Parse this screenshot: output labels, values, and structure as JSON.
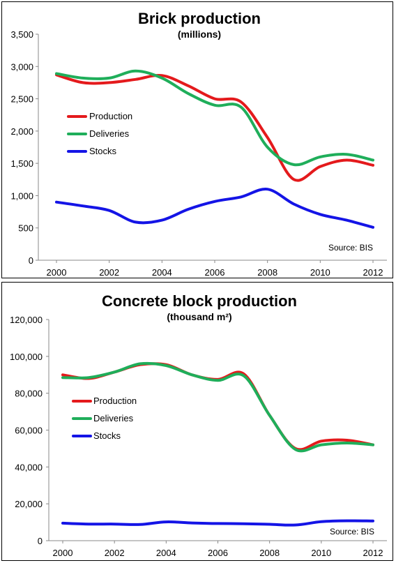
{
  "chart_data": [
    {
      "type": "line",
      "title": "Brick production",
      "subtitle": "(millions)",
      "x": [
        2000,
        2001,
        2002,
        2003,
        2004,
        2005,
        2006,
        2007,
        2008,
        2009,
        2010,
        2011,
        2012
      ],
      "x_ticks": [
        "2000",
        "2002",
        "2004",
        "2006",
        "2008",
        "2010",
        "2012"
      ],
      "y_ticks": [
        "0",
        "500",
        "1,000",
        "1,500",
        "2,000",
        "2,500",
        "3,000",
        "3,500"
      ],
      "ylim": [
        0,
        3500
      ],
      "grid": false,
      "legend_position": "left",
      "source": "Source: BIS",
      "series": [
        {
          "name": "Production",
          "color": "#e41a1c",
          "values": [
            2870,
            2750,
            2750,
            2800,
            2860,
            2700,
            2500,
            2450,
            1900,
            1250,
            1450,
            1550,
            1470
          ]
        },
        {
          "name": "Deliveries",
          "color": "#1fae5a",
          "values": [
            2890,
            2820,
            2820,
            2930,
            2820,
            2580,
            2400,
            2370,
            1750,
            1480,
            1600,
            1640,
            1550
          ]
        },
        {
          "name": "Stocks",
          "color": "#1414e6",
          "values": [
            900,
            840,
            770,
            590,
            620,
            790,
            910,
            980,
            1100,
            870,
            710,
            620,
            510
          ]
        }
      ]
    },
    {
      "type": "line",
      "title": "Concrete block production",
      "subtitle": "(thousand m²)",
      "x": [
        2000,
        2001,
        2002,
        2003,
        2004,
        2005,
        2006,
        2007,
        2008,
        2009,
        2010,
        2011,
        2012
      ],
      "x_ticks": [
        "2000",
        "2002",
        "2004",
        "2006",
        "2008",
        "2010",
        "2012"
      ],
      "y_ticks": [
        "0",
        "20,000",
        "40,000",
        "60,000",
        "80,000",
        "100,000",
        "120,000"
      ],
      "ylim": [
        0,
        120000
      ],
      "grid": false,
      "legend_position": "left",
      "source": "Source: BIS",
      "series": [
        {
          "name": "Production",
          "color": "#e41a1c",
          "values": [
            90000,
            88000,
            91500,
            95500,
            95500,
            90000,
            87500,
            90500,
            68000,
            50000,
            54000,
            54500,
            52000
          ]
        },
        {
          "name": "Deliveries",
          "color": "#1fae5a",
          "values": [
            88500,
            88500,
            91500,
            96000,
            95000,
            90000,
            87000,
            89500,
            68000,
            49500,
            52000,
            53000,
            52000
          ]
        },
        {
          "name": "Stocks",
          "color": "#1414e6",
          "values": [
            9500,
            9000,
            9000,
            8800,
            10200,
            9600,
            9300,
            9200,
            8900,
            8500,
            10300,
            10800,
            10700
          ]
        }
      ]
    }
  ]
}
